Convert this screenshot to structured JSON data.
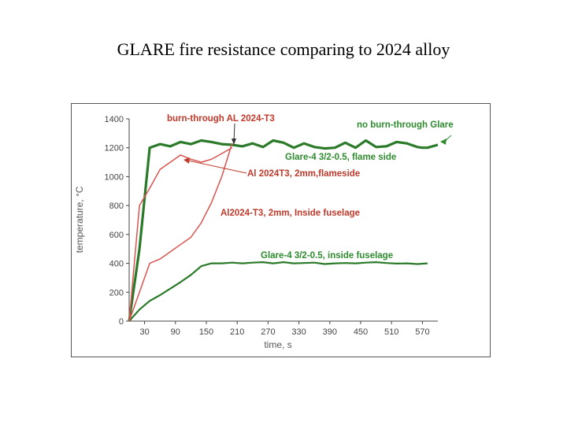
{
  "slide": {
    "title": "GLARE fire resistance comparing to 2024 alloy"
  },
  "colors": {
    "glare": "#2a7a2a",
    "al": "#d9534f",
    "annot_red": "#c0392b",
    "annot_green": "#2e8b2e",
    "axis": "#444444"
  },
  "chart_data": {
    "type": "line",
    "title": "",
    "xlabel": "time, s",
    "ylabel": "temperature, °C",
    "xlim": [
      0,
      600
    ],
    "ylim": [
      0,
      1400
    ],
    "x_ticks": [
      30,
      90,
      150,
      210,
      270,
      330,
      390,
      450,
      510,
      570
    ],
    "y_ticks": [
      0,
      200,
      400,
      600,
      800,
      1000,
      1200,
      1400
    ],
    "series": [
      {
        "name": "Glare-4 3/2-0.5, flame side",
        "color": "#2a7a2a",
        "width": 3.2,
        "x": [
          0,
          20,
          40,
          60,
          80,
          100,
          120,
          140,
          160,
          180,
          200,
          220,
          240,
          260,
          280,
          300,
          320,
          340,
          360,
          380,
          400,
          420,
          440,
          460,
          480,
          500,
          520,
          540,
          560,
          570,
          580,
          600
        ],
        "y": [
          0,
          500,
          1200,
          1225,
          1210,
          1240,
          1225,
          1250,
          1240,
          1225,
          1220,
          1210,
          1230,
          1205,
          1250,
          1235,
          1200,
          1230,
          1205,
          1195,
          1200,
          1235,
          1200,
          1250,
          1205,
          1210,
          1240,
          1230,
          1205,
          1200,
          1200,
          1220
        ]
      },
      {
        "name": "Glare-4 3/2-0.5, inside fuselage",
        "color": "#2a7a2a",
        "width": 2.2,
        "x": [
          0,
          20,
          40,
          60,
          80,
          100,
          120,
          140,
          160,
          180,
          200,
          220,
          240,
          260,
          280,
          300,
          320,
          340,
          360,
          380,
          400,
          420,
          440,
          460,
          480,
          500,
          520,
          540,
          560,
          580
        ],
        "y": [
          0,
          80,
          140,
          180,
          225,
          270,
          320,
          380,
          400,
          400,
          405,
          400,
          405,
          408,
          400,
          408,
          400,
          402,
          405,
          395,
          400,
          402,
          400,
          405,
          408,
          402,
          398,
          400,
          395,
          400
        ]
      },
      {
        "name": "Al 2024T3, 2mm,flameside",
        "color": "#d9534f",
        "width": 1.5,
        "x": [
          0,
          20,
          40,
          60,
          80,
          100,
          120,
          140,
          160,
          180,
          200
        ],
        "y": [
          0,
          800,
          920,
          1050,
          1100,
          1150,
          1120,
          1100,
          1120,
          1160,
          1200
        ]
      },
      {
        "name": "Al2024-T3, 2mm, Inside fuselage",
        "color": "#d9534f",
        "width": 1.5,
        "x": [
          0,
          20,
          40,
          60,
          80,
          100,
          120,
          140,
          160,
          180,
          200
        ],
        "y": [
          0,
          200,
          400,
          430,
          480,
          530,
          580,
          680,
          820,
          1000,
          1230
        ]
      }
    ],
    "annotations": [
      {
        "text": "burn-through AL 2024-T3",
        "color": "#c0392b"
      },
      {
        "text": "no burn-through Glare",
        "color": "#2e8b2e"
      },
      {
        "text": "Glare-4 3/2-0.5, flame side",
        "color": "#2e8b2e"
      },
      {
        "text": "Al 2024T3, 2mm,flameside",
        "color": "#c0392b"
      },
      {
        "text": "Al2024-T3, 2mm, Inside fuselage",
        "color": "#c0392b"
      },
      {
        "text": "Glare-4 3/2-0.5, inside fuselage",
        "color": "#2e8b2e"
      }
    ],
    "grid": false,
    "legend": "none"
  }
}
